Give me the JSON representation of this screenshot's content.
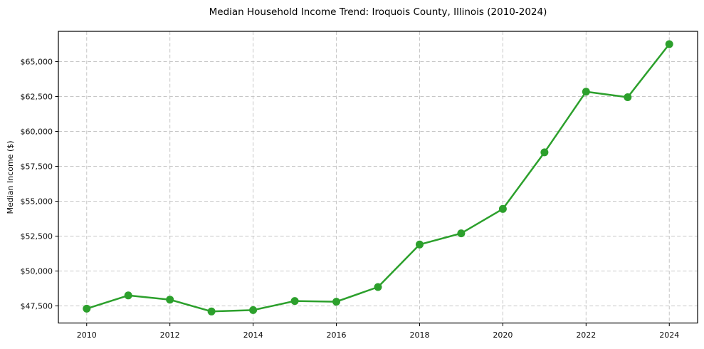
{
  "chart_data": {
    "type": "line",
    "title": "Median Household Income Trend: Iroquois County, Illinois (2010-2024)",
    "xlabel": "",
    "ylabel": "Median Income ($)",
    "x": [
      2010,
      2011,
      2012,
      2013,
      2014,
      2015,
      2016,
      2017,
      2018,
      2019,
      2020,
      2021,
      2022,
      2023,
      2024
    ],
    "values": [
      47300,
      48250,
      47950,
      47100,
      47200,
      47850,
      47800,
      48850,
      51900,
      52700,
      54450,
      58500,
      62850,
      62450,
      66250
    ],
    "x_ticks": [
      2010,
      2012,
      2014,
      2016,
      2018,
      2020,
      2022,
      2024
    ],
    "x_tick_labels": [
      "2010",
      "2012",
      "2014",
      "2016",
      "2018",
      "2020",
      "2022",
      "2024"
    ],
    "y_ticks": [
      47500,
      50000,
      52500,
      55000,
      57500,
      60000,
      62500,
      65000
    ],
    "y_tick_labels": [
      "$47,500",
      "$50,000",
      "$52,500",
      "$55,000",
      "$57,500",
      "$60,000",
      "$62,500",
      "$65,000"
    ],
    "xlim": [
      2009.32,
      2024.68
    ],
    "ylim": [
      46275,
      67170
    ],
    "grid": "dashed",
    "legend": "none",
    "line_color": "#2ca02c",
    "grid_color": "#c6c6c6",
    "spine_color": "#000000",
    "marker": "circle"
  }
}
